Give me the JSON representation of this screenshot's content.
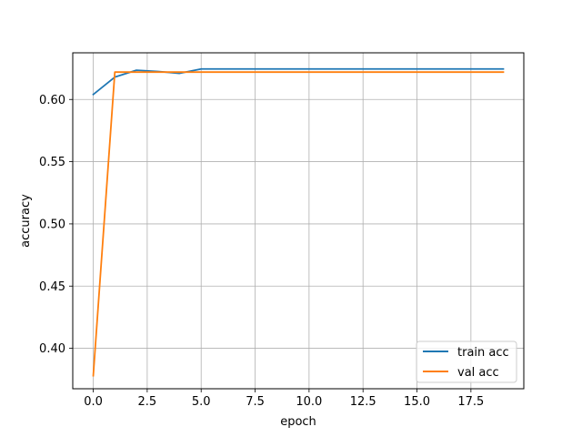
{
  "chart_data": {
    "type": "line",
    "title": "",
    "xlabel": "epoch",
    "ylabel": "accuracy",
    "xlim": [
      -0.95,
      19.95
    ],
    "ylim": [
      0.3675,
      0.6375
    ],
    "xticks": [
      0.0,
      2.5,
      5.0,
      7.5,
      10.0,
      12.5,
      15.0,
      17.5
    ],
    "xtick_labels": [
      "0.0",
      "2.5",
      "5.0",
      "7.5",
      "10.0",
      "12.5",
      "15.0",
      "17.5"
    ],
    "yticks": [
      0.4,
      0.45,
      0.5,
      0.55,
      0.6
    ],
    "ytick_labels": [
      "0.40",
      "0.45",
      "0.50",
      "0.55",
      "0.60"
    ],
    "grid": true,
    "legend_position": "lower-right",
    "x": [
      0,
      1,
      2,
      3,
      4,
      5,
      6,
      7,
      8,
      9,
      10,
      11,
      12,
      13,
      14,
      15,
      16,
      17,
      18,
      19
    ],
    "series": [
      {
        "name": "train acc",
        "color": "#1f77b4",
        "values": [
          0.604,
          0.618,
          0.6235,
          0.6225,
          0.621,
          0.6245,
          0.6245,
          0.6245,
          0.6245,
          0.6245,
          0.6245,
          0.6245,
          0.6245,
          0.6245,
          0.6245,
          0.6245,
          0.6245,
          0.6245,
          0.6245,
          0.6245
        ]
      },
      {
        "name": "val acc",
        "color": "#ff7f0e",
        "values": [
          0.378,
          0.622,
          0.622,
          0.622,
          0.622,
          0.622,
          0.622,
          0.622,
          0.622,
          0.622,
          0.622,
          0.622,
          0.622,
          0.622,
          0.622,
          0.622,
          0.622,
          0.622,
          0.622,
          0.622
        ]
      }
    ]
  }
}
